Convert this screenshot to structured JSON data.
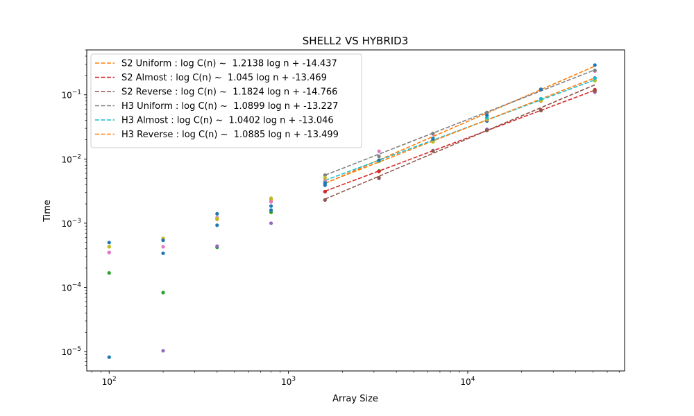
{
  "chart_data": {
    "type": "scatter",
    "title": "SHELL2 VS HYBRID3",
    "xlabel": "Array Size",
    "ylabel": "Time",
    "xscale": "log",
    "yscale": "log",
    "xlim": [
      75,
      75000
    ],
    "ylim": [
      5e-06,
      0.5
    ],
    "grid": false,
    "legend_position": "top-left",
    "x_ticks": [
      {
        "value": 100,
        "base": "10",
        "exp": "2"
      },
      {
        "value": 1000,
        "base": "10",
        "exp": "3"
      },
      {
        "value": 10000,
        "base": "10",
        "exp": "4"
      }
    ],
    "y_ticks": [
      {
        "value": 1e-05,
        "base": "10",
        "exp": "−5"
      },
      {
        "value": 0.0001,
        "base": "10",
        "exp": "−4"
      },
      {
        "value": 0.001,
        "base": "10",
        "exp": "−3"
      },
      {
        "value": 0.01,
        "base": "10",
        "exp": "−2"
      },
      {
        "value": 0.1,
        "base": "10",
        "exp": "−1"
      }
    ],
    "scatter_series": [
      {
        "color": "#1f77b4",
        "x": [
          100,
          200,
          400,
          800,
          1600,
          3200,
          6400,
          12800,
          25600,
          51200
        ],
        "y": [
          8.2e-06,
          0.00034,
          0.00093,
          0.00185,
          0.0039,
          0.0095,
          0.0197,
          0.039,
          0.083,
          0.183
        ]
      },
      {
        "color": "#ff7f0e",
        "x": [
          100,
          200,
          400,
          800,
          1600,
          3200,
          6400,
          12800,
          25600,
          51200
        ],
        "y": [
          0.00043,
          0.00056,
          0.00115,
          0.0023,
          0.0045,
          0.0092,
          0.0185,
          0.041,
          0.08,
          0.17
        ]
      },
      {
        "color": "#2ca02c",
        "x": [
          100,
          200,
          400,
          800,
          1600,
          3200,
          6400,
          12800,
          25600,
          51200
        ],
        "y": [
          0.000168,
          8.3e-05,
          0.00042,
          0.00148,
          0.0031,
          0.0065,
          0.0195,
          0.028,
          0.058,
          0.118
        ]
      },
      {
        "color": "#d62728",
        "x": [
          1600,
          3200,
          6400,
          12800,
          25600,
          51200
        ],
        "y": [
          0.0031,
          0.0064,
          0.0134,
          0.028,
          0.058,
          0.12
        ]
      },
      {
        "color": "#9467bd",
        "x": [
          100,
          200,
          400,
          800,
          1600,
          3200,
          6400,
          12800,
          25600,
          51200
        ],
        "y": [
          0.00035,
          1.03e-05,
          0.00044,
          0.001,
          0.0023,
          0.005,
          0.0135,
          0.029,
          0.057,
          0.11
        ]
      },
      {
        "color": "#8c564b",
        "x": [
          1600,
          3200,
          6400,
          12800,
          25600,
          51200
        ],
        "y": [
          0.0023,
          0.0051,
          0.0133,
          0.028,
          0.057,
          0.115
        ]
      },
      {
        "color": "#e377c2",
        "x": [
          100,
          200,
          400,
          800,
          1600,
          3200,
          6400,
          12800,
          25600,
          51200
        ],
        "y": [
          0.00035,
          0.00043,
          0.00122,
          0.00215,
          0.0046,
          0.0132,
          0.0245,
          0.052,
          0.12,
          0.235
        ]
      },
      {
        "color": "#7f7f7f",
        "x": [
          1600,
          3200,
          6400,
          12800,
          25600,
          51200
        ],
        "y": [
          0.0056,
          0.011,
          0.025,
          0.053,
          0.12,
          0.24
        ]
      },
      {
        "color": "#bcbd22",
        "x": [
          100,
          200,
          400,
          800,
          1600,
          3200,
          6400,
          12800,
          25600,
          51200
        ],
        "y": [
          0.00043,
          0.00058,
          0.00118,
          0.00245,
          0.0051,
          0.0092,
          0.0185,
          0.042,
          0.082,
          0.165
        ]
      },
      {
        "color": "#17becf",
        "x": [
          1600,
          3200,
          6400,
          12800,
          25600,
          51200
        ],
        "y": [
          0.0043,
          0.0095,
          0.021,
          0.044,
          0.087,
          0.18
        ]
      },
      {
        "color": "#1f77b4",
        "x": [
          100,
          200,
          400,
          800,
          1600,
          3200,
          6400,
          12800,
          25600,
          51200
        ],
        "y": [
          0.0005,
          0.00054,
          0.0014,
          0.0016,
          0.0042,
          0.0096,
          0.0205,
          0.048,
          0.122,
          0.29
        ]
      }
    ],
    "fit_lines": [
      {
        "name": "S2 Uniform : log C(n) ~  1.2138 log n + -14.437",
        "color": "#ff7f0e",
        "slope": 1.2138,
        "intercept": -14.437,
        "x_range": [
          1600,
          51200
        ]
      },
      {
        "name": "S2 Almost : log C(n) ~  1.045 log n + -13.469",
        "color": "#d62728",
        "slope": 1.045,
        "intercept": -13.469,
        "x_range": [
          1600,
          51200
        ]
      },
      {
        "name": "S2 Reverse : log C(n) ~  1.1824 log n + -14.766",
        "color": "#8c564b",
        "slope": 1.1824,
        "intercept": -14.766,
        "x_range": [
          1600,
          51200
        ]
      },
      {
        "name": "H3 Uniform : log C(n) ~  1.0899 log n + -13.227",
        "color": "#7f7f7f",
        "slope": 1.0899,
        "intercept": -13.227,
        "x_range": [
          1600,
          51200
        ]
      },
      {
        "name": "H3 Almost : log C(n) ~  1.0402 log n + -13.046",
        "color": "#17becf",
        "slope": 1.0402,
        "intercept": -13.046,
        "x_range": [
          1600,
          51200
        ]
      },
      {
        "name": "H3 Reverse : log C(n) ~  1.0885 log n + -13.499",
        "color": "#ff7f0e",
        "slope": 1.0885,
        "intercept": -13.499,
        "x_range": [
          1600,
          51200
        ]
      }
    ]
  }
}
